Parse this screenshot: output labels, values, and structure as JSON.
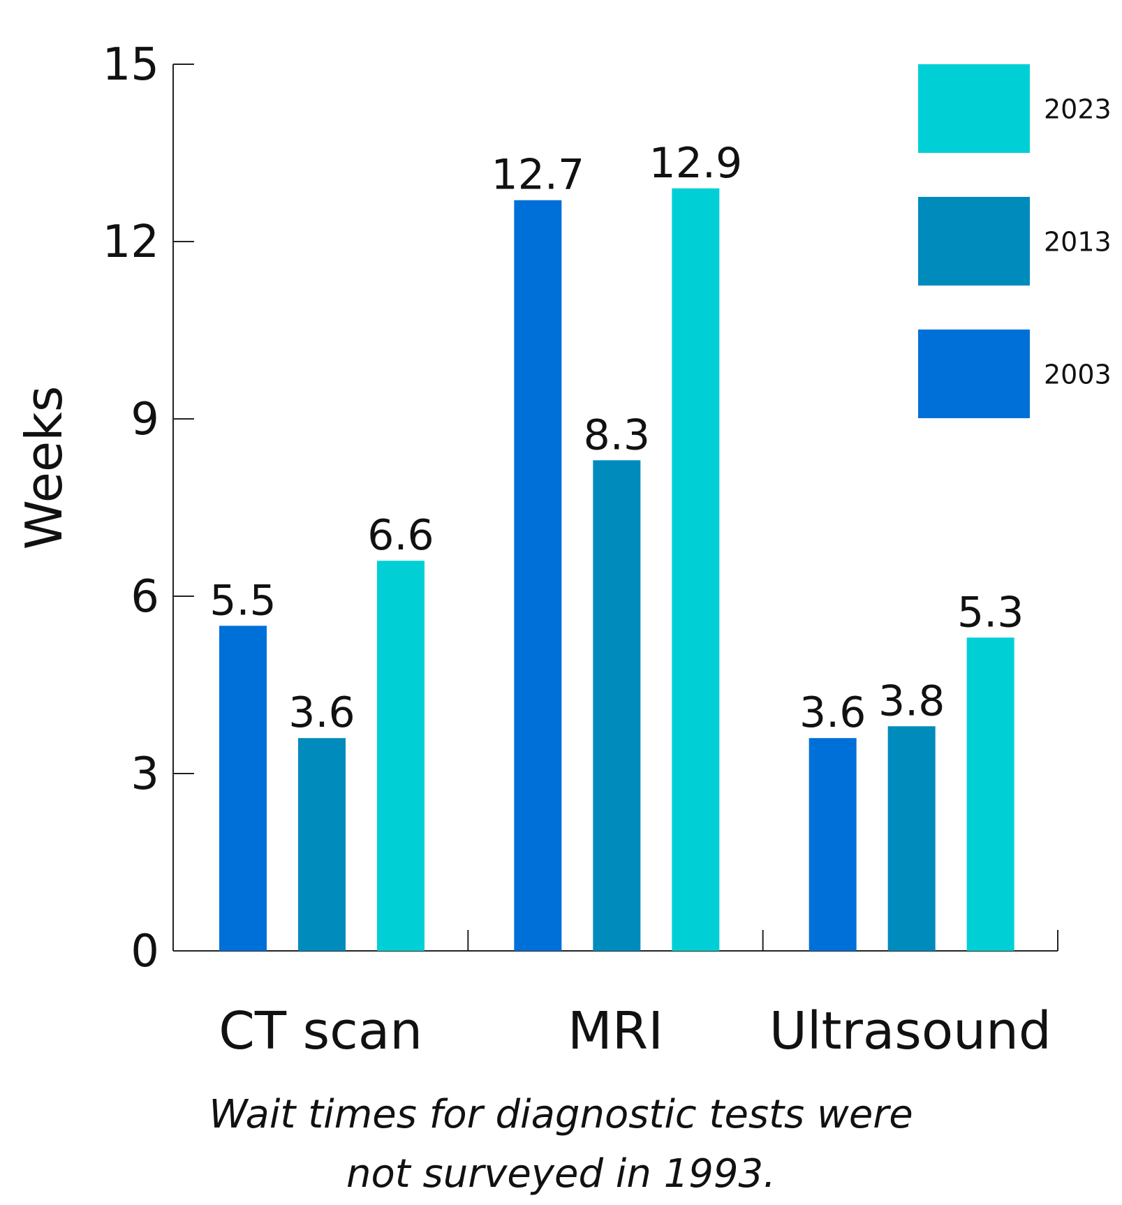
{
  "chart_data": {
    "type": "bar",
    "title": "",
    "xlabel": "",
    "ylabel": "Weeks",
    "ylim": [
      0,
      15
    ],
    "yticks": [
      0,
      3,
      6,
      9,
      12,
      15
    ],
    "grid": false,
    "legend_position": "top-right",
    "categories": [
      "CT scan",
      "MRI",
      "Ultrasound"
    ],
    "series": [
      {
        "name": "2003",
        "color": "#0070d9",
        "values": [
          5.5,
          12.7,
          3.6
        ]
      },
      {
        "name": "2013",
        "color": "#008bbd",
        "values": [
          3.6,
          8.3,
          3.8
        ]
      },
      {
        "name": "2023",
        "color": "#00d0d6",
        "values": [
          6.6,
          12.9,
          5.3
        ]
      }
    ],
    "legend_order": [
      "2023",
      "2013",
      "2003"
    ],
    "data_labels": [
      [
        "5.5",
        "12.7",
        "3.6"
      ],
      [
        "3.6",
        "8.3",
        "3.8"
      ],
      [
        "6.6",
        "12.9",
        "5.3"
      ]
    ]
  },
  "footnote": {
    "line1": "Wait times for diagnostic tests were",
    "line2": "not surveyed in 1993."
  }
}
